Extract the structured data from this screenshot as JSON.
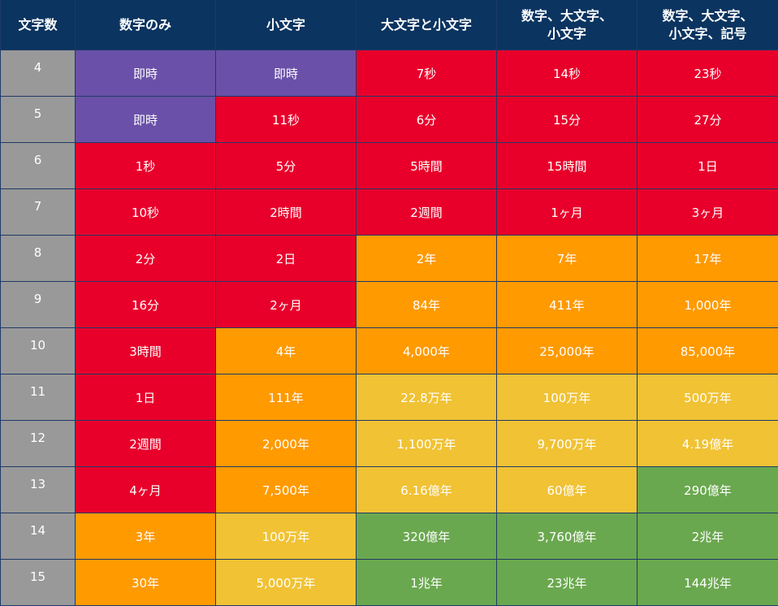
{
  "colors": {
    "header": "#0b3460",
    "length_col": "#999999",
    "instant": "#6a50a8",
    "red": "#e8002b",
    "orange": "#ff9a00",
    "yellow": "#f0c234",
    "green": "#6aa84f"
  },
  "chart_data": {
    "type": "table",
    "columns": [
      "文字数",
      "数字のみ",
      "小文字",
      "大文字と小文字",
      "数字、大文字、\n小文字",
      "数字、大文字、\n小文字、記号"
    ],
    "rows": [
      {
        "length": "4",
        "cells": [
          {
            "text": "即時",
            "color": "instant"
          },
          {
            "text": "即時",
            "color": "instant"
          },
          {
            "text": "7秒",
            "color": "red"
          },
          {
            "text": "14秒",
            "color": "red"
          },
          {
            "text": "23秒",
            "color": "red"
          }
        ]
      },
      {
        "length": "5",
        "cells": [
          {
            "text": "即時",
            "color": "instant"
          },
          {
            "text": "11秒",
            "color": "red"
          },
          {
            "text": "6分",
            "color": "red"
          },
          {
            "text": "15分",
            "color": "red"
          },
          {
            "text": "27分",
            "color": "red"
          }
        ]
      },
      {
        "length": "6",
        "cells": [
          {
            "text": "1秒",
            "color": "red"
          },
          {
            "text": "5分",
            "color": "red"
          },
          {
            "text": "5時間",
            "color": "red"
          },
          {
            "text": "15時間",
            "color": "red"
          },
          {
            "text": "1日",
            "color": "red"
          }
        ]
      },
      {
        "length": "7",
        "cells": [
          {
            "text": "10秒",
            "color": "red"
          },
          {
            "text": "2時間",
            "color": "red"
          },
          {
            "text": "2週間",
            "color": "red"
          },
          {
            "text": "1ヶ月",
            "color": "red"
          },
          {
            "text": "3ヶ月",
            "color": "red"
          }
        ]
      },
      {
        "length": "8",
        "cells": [
          {
            "text": "2分",
            "color": "red"
          },
          {
            "text": "2日",
            "color": "red"
          },
          {
            "text": "2年",
            "color": "orange"
          },
          {
            "text": "7年",
            "color": "orange"
          },
          {
            "text": "17年",
            "color": "orange"
          }
        ]
      },
      {
        "length": "9",
        "cells": [
          {
            "text": "16分",
            "color": "red"
          },
          {
            "text": "2ヶ月",
            "color": "red"
          },
          {
            "text": "84年",
            "color": "orange"
          },
          {
            "text": "411年",
            "color": "orange"
          },
          {
            "text": "1,000年",
            "color": "orange"
          }
        ]
      },
      {
        "length": "10",
        "cells": [
          {
            "text": "3時間",
            "color": "red"
          },
          {
            "text": "4年",
            "color": "orange"
          },
          {
            "text": "4,000年",
            "color": "orange"
          },
          {
            "text": "25,000年",
            "color": "orange"
          },
          {
            "text": "85,000年",
            "color": "orange"
          }
        ]
      },
      {
        "length": "11",
        "cells": [
          {
            "text": "1日",
            "color": "red"
          },
          {
            "text": "111年",
            "color": "orange"
          },
          {
            "text": "22.8万年",
            "color": "yellow"
          },
          {
            "text": "100万年",
            "color": "yellow"
          },
          {
            "text": "500万年",
            "color": "yellow"
          }
        ]
      },
      {
        "length": "12",
        "cells": [
          {
            "text": "2週間",
            "color": "red"
          },
          {
            "text": "2,000年",
            "color": "orange"
          },
          {
            "text": "1,100万年",
            "color": "yellow"
          },
          {
            "text": "9,700万年",
            "color": "yellow"
          },
          {
            "text": "4.19億年",
            "color": "yellow"
          }
        ]
      },
      {
        "length": "13",
        "cells": [
          {
            "text": "4ヶ月",
            "color": "red"
          },
          {
            "text": "7,500年",
            "color": "orange"
          },
          {
            "text": "6.16億年",
            "color": "yellow"
          },
          {
            "text": "60億年",
            "color": "yellow"
          },
          {
            "text": "290億年",
            "color": "green"
          }
        ]
      },
      {
        "length": "14",
        "cells": [
          {
            "text": "3年",
            "color": "orange"
          },
          {
            "text": "100万年",
            "color": "yellow"
          },
          {
            "text": "320億年",
            "color": "green"
          },
          {
            "text": "3,760億年",
            "color": "green"
          },
          {
            "text": "2兆年",
            "color": "green"
          }
        ]
      },
      {
        "length": "15",
        "cells": [
          {
            "text": "30年",
            "color": "orange"
          },
          {
            "text": "5,000万年",
            "color": "yellow"
          },
          {
            "text": "1兆年",
            "color": "green"
          },
          {
            "text": "23兆年",
            "color": "green"
          },
          {
            "text": "144兆年",
            "color": "green"
          }
        ]
      }
    ]
  }
}
